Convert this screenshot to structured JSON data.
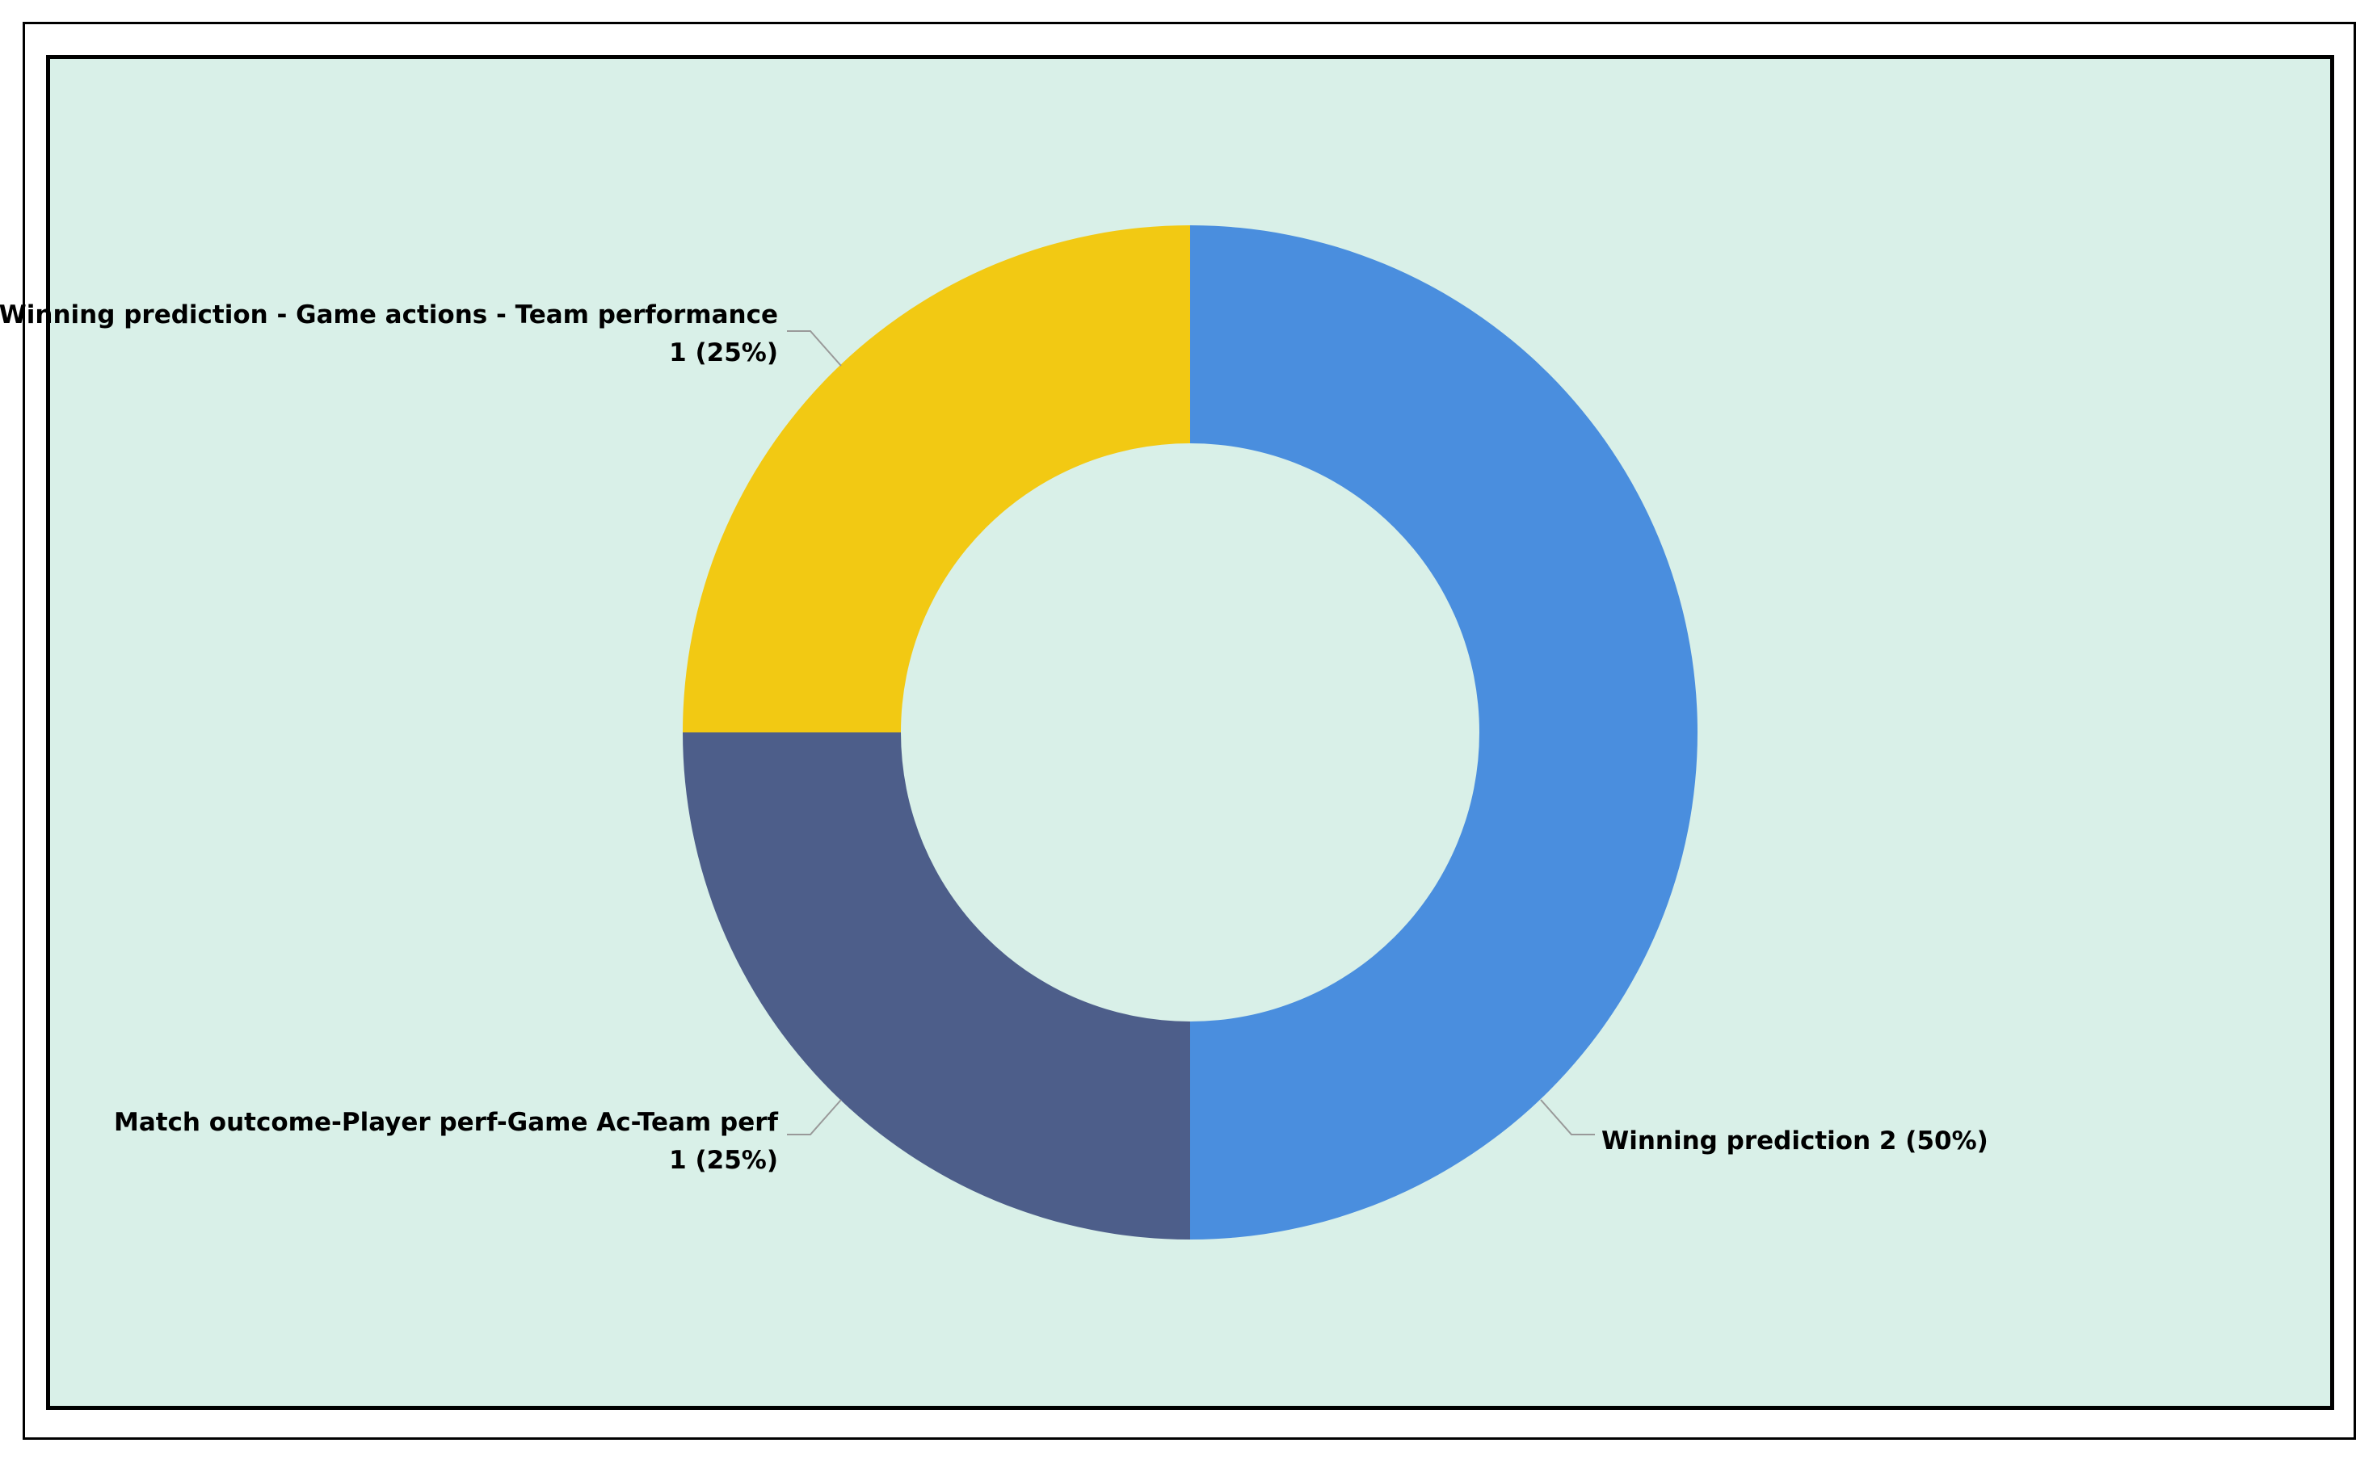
{
  "chart_data": {
    "type": "pie",
    "donut": true,
    "title": "",
    "background_color": "#d9f0e8",
    "label_line_color": "#999999",
    "slices": [
      {
        "label_line1": "Winning prediction 2 (50%)",
        "label_line2": "",
        "category": "Winning prediction",
        "value": 2,
        "percent": "50%",
        "color": "#4a8ede"
      },
      {
        "label_line1": "Match outcome-Player perf-Game Ac-Team perf",
        "label_line2": "1 (25%)",
        "category": "Match outcome-Player perf-Game Ac-Team perf",
        "value": 1,
        "percent": "25%",
        "color": "#4d5e8a"
      },
      {
        "label_line1": "Winning prediction - Game actions - Team performance",
        "label_line2": "1 (25%)",
        "category": "Winning prediction - Game actions - Team performance",
        "value": 1,
        "percent": "25%",
        "color": "#f2c913"
      }
    ]
  }
}
